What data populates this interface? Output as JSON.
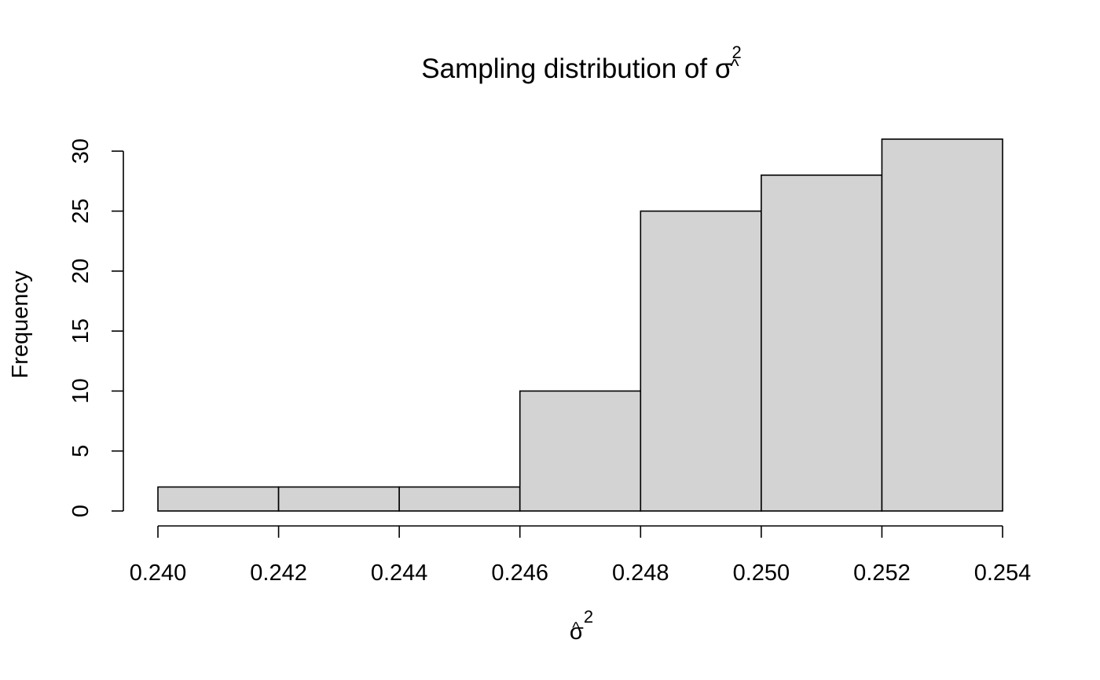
{
  "chart_data": {
    "type": "bar",
    "subtype": "histogram",
    "title_prefix": "Sampling distribution of ",
    "symbol": "σ",
    "symbol_hat": "^",
    "symbol_exponent": "2",
    "xlabel_symbol": "σ",
    "xlabel_hat": "^",
    "xlabel_exponent": "2",
    "ylabel": "Frequency",
    "bin_edges": [
      0.24,
      0.242,
      0.244,
      0.246,
      0.248,
      0.25,
      0.252,
      0.254
    ],
    "values": [
      2,
      2,
      2,
      10,
      25,
      28,
      31
    ],
    "xlim": [
      0.24,
      0.254
    ],
    "ylim": [
      0,
      31
    ],
    "x_ticks": [
      "0.240",
      "0.242",
      "0.244",
      "0.246",
      "0.248",
      "0.250",
      "0.252",
      "0.254"
    ],
    "y_ticks": [
      "0",
      "5",
      "10",
      "15",
      "20",
      "25",
      "30"
    ],
    "bar_fill": "#d3d3d3",
    "bar_stroke": "#000000",
    "grid": false,
    "legend": "none"
  }
}
